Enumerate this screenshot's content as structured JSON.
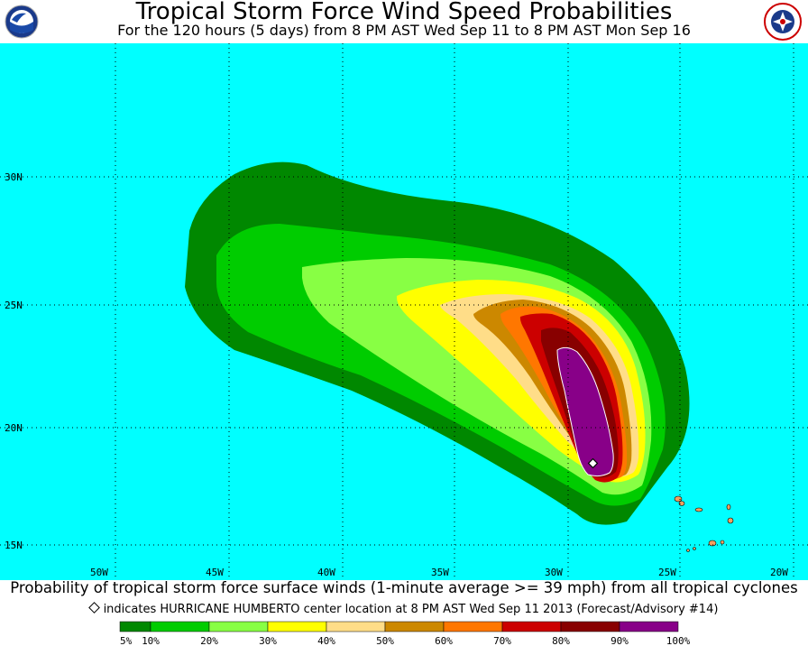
{
  "header": {
    "title": "Tropical Storm Force Wind Speed Probabilities",
    "subtitle": "For the 120 hours (5 days) from 8 PM AST Wed Sep 11 to 8 PM AST Mon Sep 16"
  },
  "logos": {
    "left": "noaa-logo",
    "right": "nws-logo"
  },
  "map": {
    "ocean_color": "#00ffff",
    "land_color": "#f4a060",
    "lat_labels": [
      "30N",
      "25N",
      "20N",
      "15N"
    ],
    "lon_labels": [
      "50W",
      "45W",
      "40W",
      "35W",
      "30W",
      "25W",
      "20W"
    ],
    "storm_marker": "diamond",
    "probability_colors": [
      "#008800",
      "#00cc00",
      "#88ff44",
      "#ffff00",
      "#ffdd88",
      "#cc8800",
      "#ff7700",
      "#cc0000",
      "#880000",
      "#880088"
    ]
  },
  "caption": "Probability of tropical storm force surface winds (1-minute average >= 39 mph) from all tropical cyclones",
  "note": "indicates HURRICANE HUMBERTO center location at 8 PM AST Wed Sep 11 2013 (Forecast/Advisory #14)",
  "legend": {
    "labels": [
      "5%",
      "10%",
      "20%",
      "30%",
      "40%",
      "50%",
      "60%",
      "70%",
      "80%",
      "90%",
      "100%"
    ],
    "colors": [
      "#008800",
      "#00cc00",
      "#88ff44",
      "#ffff00",
      "#ffdd88",
      "#cc8800",
      "#ff7700",
      "#cc0000",
      "#880000",
      "#880088"
    ]
  }
}
